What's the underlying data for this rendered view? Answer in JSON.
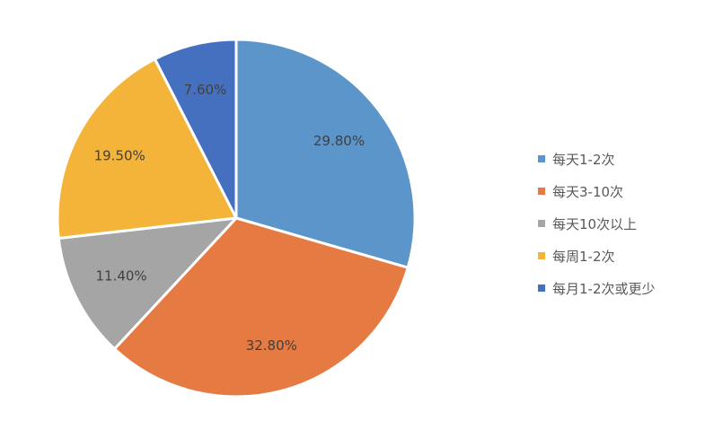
{
  "chart_data": {
    "type": "pie",
    "title": "",
    "slices": [
      {
        "label": "每天1-2次",
        "value": 29.8,
        "value_label": "29.80%",
        "color": "#5B95C9"
      },
      {
        "label": "每天3-10次",
        "value": 32.8,
        "value_label": "32.80%",
        "color": "#E57A42"
      },
      {
        "label": "每天10次以上",
        "value": 11.4,
        "value_label": "11.40%",
        "color": "#A5A5A5"
      },
      {
        "label": "每周1-2次",
        "value": 19.5,
        "value_label": "19.50%",
        "color": "#F4B43A"
      },
      {
        "label": "每月1-2次或更少",
        "value": 7.6,
        "value_label": "7.60%",
        "color": "#4470BF"
      }
    ],
    "start": "12 o'clock",
    "direction": "clockwise",
    "slice_border_color": "#ffffff",
    "legend_position": "right"
  }
}
